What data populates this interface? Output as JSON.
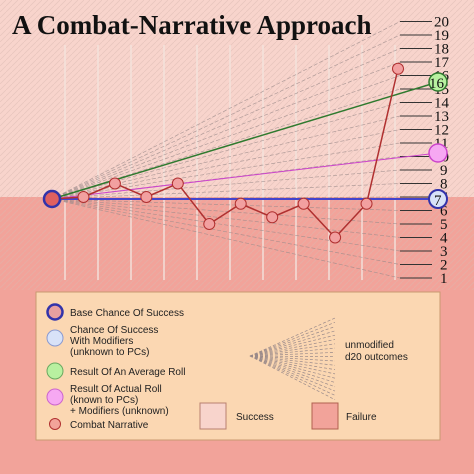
{
  "title": "A Combat-Narrative Approach",
  "scale_ticks": [
    "1",
    "2",
    "3",
    "4",
    "5",
    "6",
    "7",
    "8",
    "9",
    "10",
    "11",
    "12",
    "13",
    "14",
    "15",
    "16",
    "17",
    "18",
    "19",
    "20"
  ],
  "markers": {
    "base_value": "7",
    "modified_value": "11",
    "average_value": "16"
  },
  "legend": {
    "base_chance": "Base Chance Of Success",
    "modified_chance": [
      "Chance Of Success",
      "With Modifiers",
      "(unknown to PCs)"
    ],
    "average_roll": "Result Of An Average Roll",
    "actual_roll": [
      "Result Of Actual Roll",
      "(known to PCs)",
      "+ Modifiers (unknown)"
    ],
    "combat_narrative": "Combat Narrative",
    "unmodified": [
      "unmodified",
      "d20 outcomes"
    ],
    "success": "Success",
    "failure": "Failure"
  },
  "colors": {
    "success_bg": "#f8d4cc",
    "failure_bg": "#f2a39a",
    "base_line": "#4444cc",
    "average_line": "#2f7a2f",
    "modifier_line": "#cc44cc",
    "narrative_line": "#b03030",
    "legend_bg": "#fbd7b2"
  },
  "narrative_points": [
    7,
    8,
    7,
    8,
    5,
    6.5,
    5.5,
    6.5,
    4,
    6.5,
    16.5
  ]
}
